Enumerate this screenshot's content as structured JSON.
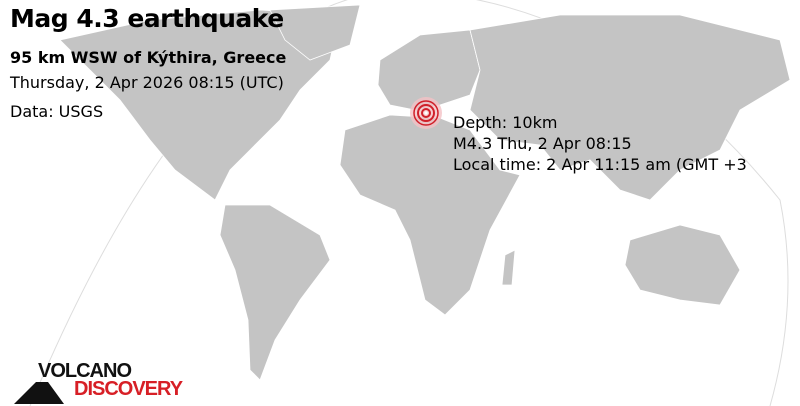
{
  "title": "Mag 4.3 earthquake",
  "location": "95 km WSW of Kýthira, Greece",
  "datetime": "Thursday,  2 Apr 2026 08:15 (UTC)",
  "source": "Data: USGS",
  "details": {
    "depth": "Depth: 10km",
    "summary": "M4.3 Thu,  2 Apr 08:15",
    "local_time": "Local time: 2 Apr 11:15 am (GMT +3"
  },
  "logo": {
    "line1": "VOLCANO",
    "line2": "DISCOVERY"
  },
  "colors": {
    "land": "#c4c4c4",
    "epicenter": "#d0202a",
    "logo_red": "#d71f26"
  },
  "epicenter_icon": "concentric-rings-marker"
}
